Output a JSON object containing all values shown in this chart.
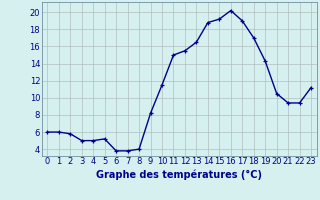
{
  "x": [
    0,
    1,
    2,
    3,
    4,
    5,
    6,
    7,
    8,
    9,
    10,
    11,
    12,
    13,
    14,
    15,
    16,
    17,
    18,
    19,
    20,
    21,
    22,
    23
  ],
  "y": [
    6.0,
    6.0,
    5.8,
    5.0,
    5.0,
    5.2,
    3.8,
    3.8,
    4.0,
    8.2,
    11.5,
    15.0,
    15.5,
    16.5,
    18.8,
    19.2,
    20.2,
    19.0,
    17.0,
    14.3,
    10.5,
    9.4,
    9.4,
    11.2
  ],
  "line_color": "#00008B",
  "marker_color": "#00008B",
  "bg_color": "#d6f0f0",
  "grid_color": "#b0bfbf",
  "xlabel": "Graphe des températures (°C)",
  "yticks": [
    4,
    6,
    8,
    10,
    12,
    14,
    16,
    18,
    20
  ],
  "ylim": [
    3.2,
    21.2
  ],
  "xlim": [
    -0.5,
    23.5
  ],
  "xticks": [
    0,
    1,
    2,
    3,
    4,
    5,
    6,
    7,
    8,
    9,
    10,
    11,
    12,
    13,
    14,
    15,
    16,
    17,
    18,
    19,
    20,
    21,
    22,
    23
  ],
  "xlabel_fontsize": 7.0,
  "tick_fontsize": 6.0,
  "axis_color": "#00008B",
  "spine_color": "#7090a0",
  "linewidth": 1.0,
  "markersize": 3.5
}
